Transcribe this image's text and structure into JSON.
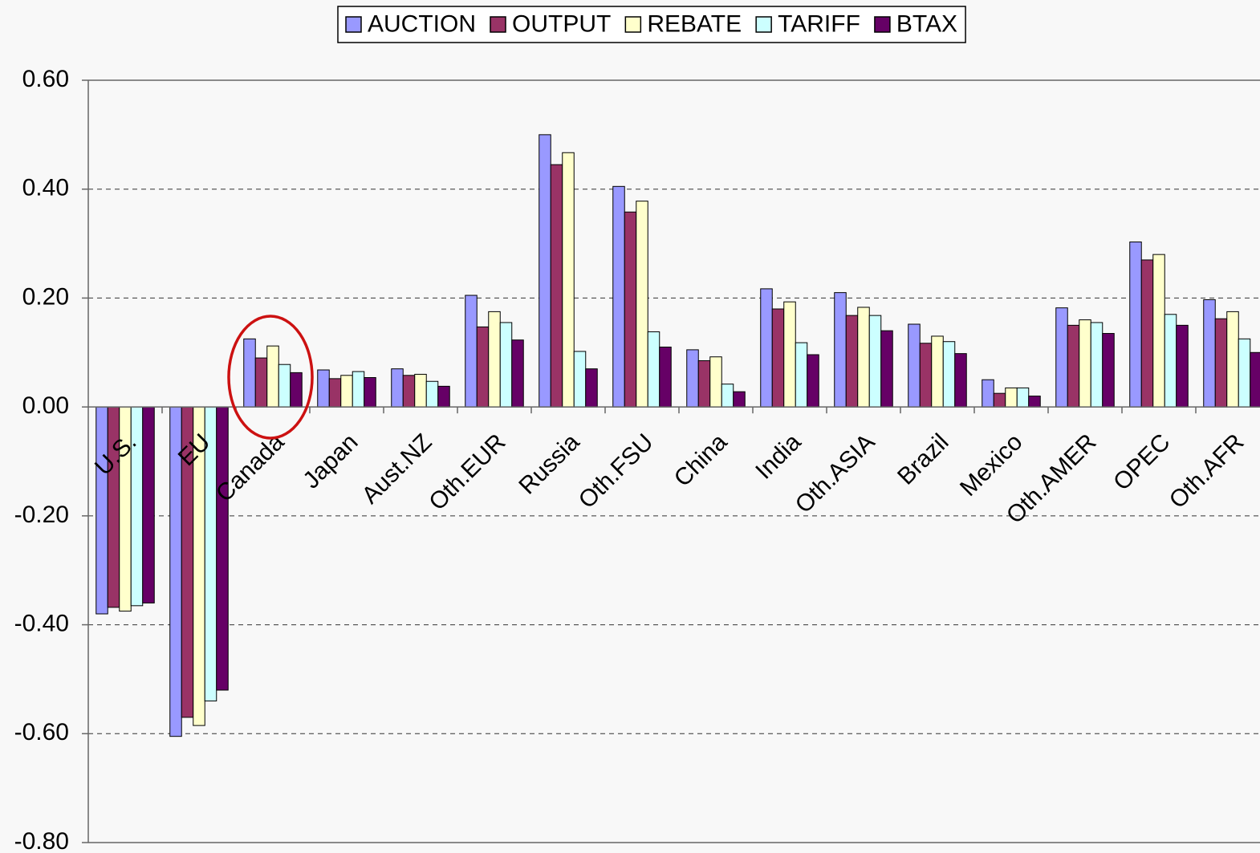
{
  "chart_data": {
    "type": "bar",
    "categories": [
      "U.S.",
      "EU",
      "Canada",
      "Japan",
      "Aust.NZ",
      "Oth.EUR",
      "Russia",
      "Oth.FSU",
      "China",
      "India",
      "Oth.ASIA",
      "Brazil",
      "Mexico",
      "Oth.AMER",
      "OPEC",
      "Oth.AFR"
    ],
    "series": [
      {
        "name": "AUCTION",
        "color": "#9999ff",
        "values": [
          -0.38,
          -0.605,
          0.125,
          0.068,
          0.07,
          0.205,
          0.5,
          0.405,
          0.105,
          0.217,
          0.21,
          0.152,
          0.05,
          0.182,
          0.303,
          0.197
        ]
      },
      {
        "name": "OUTPUT",
        "color": "#993366",
        "values": [
          -0.368,
          -0.57,
          0.09,
          0.052,
          0.058,
          0.147,
          0.445,
          0.358,
          0.085,
          0.18,
          0.168,
          0.117,
          0.025,
          0.15,
          0.27,
          0.162
        ]
      },
      {
        "name": "REBATE",
        "color": "#ffffcc",
        "values": [
          -0.375,
          -0.585,
          0.112,
          0.058,
          0.06,
          0.175,
          0.467,
          0.378,
          0.092,
          0.193,
          0.183,
          0.13,
          0.035,
          0.16,
          0.28,
          0.175
        ]
      },
      {
        "name": "TARIFF",
        "color": "#ccffff",
        "values": [
          -0.365,
          -0.54,
          0.078,
          0.065,
          0.047,
          0.155,
          0.102,
          0.138,
          0.042,
          0.118,
          0.168,
          0.12,
          0.035,
          0.155,
          0.17,
          0.125
        ]
      },
      {
        "name": "BTAX",
        "color": "#660066",
        "values": [
          -0.36,
          -0.52,
          0.063,
          0.054,
          0.038,
          0.123,
          0.07,
          0.11,
          0.028,
          0.096,
          0.14,
          0.098,
          0.02,
          0.135,
          0.15,
          0.1
        ]
      }
    ],
    "ylim": [
      -0.8,
      0.6
    ],
    "yticks": [
      {
        "value": -0.8,
        "label": "-0.80"
      },
      {
        "value": -0.6,
        "label": "-0.60"
      },
      {
        "value": -0.4,
        "label": "-0.40"
      },
      {
        "value": -0.2,
        "label": "-0.20"
      },
      {
        "value": 0,
        "label": "0.00"
      },
      {
        "value": 0.2,
        "label": "0.20"
      },
      {
        "value": 0.4,
        "label": "0.40"
      },
      {
        "value": 0.6,
        "label": "0.60"
      }
    ],
    "grid": true,
    "legend": "top"
  }
}
